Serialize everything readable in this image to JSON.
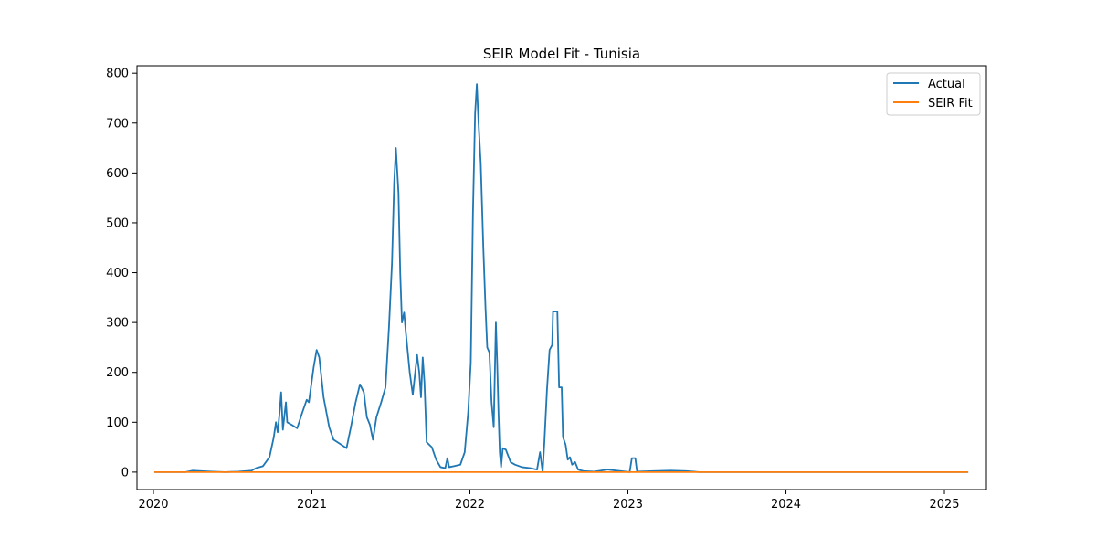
{
  "chart_data": {
    "type": "line",
    "title": "SEIR Model Fit - Tunisia",
    "xlabel": "",
    "ylabel": "",
    "x_ticks": [
      "2020",
      "2021",
      "2022",
      "2023",
      "2024",
      "2025"
    ],
    "y_ticks": [
      0,
      100,
      200,
      300,
      400,
      500,
      600,
      700,
      800
    ],
    "xlim": [
      "2019-11-24",
      "2025-04-08"
    ],
    "ylim": [
      -35,
      815
    ],
    "grid": false,
    "legend_position": "top-right",
    "series": [
      {
        "name": "Actual",
        "color": "#1f77b4",
        "points": [
          [
            "2020-01-03",
            0
          ],
          [
            "2020-03-15",
            0
          ],
          [
            "2020-04-01",
            3
          ],
          [
            "2020-04-20",
            2
          ],
          [
            "2020-05-15",
            1
          ],
          [
            "2020-06-15",
            0
          ],
          [
            "2020-07-15",
            1
          ],
          [
            "2020-08-15",
            3
          ],
          [
            "2020-08-25",
            8
          ],
          [
            "2020-09-10",
            12
          ],
          [
            "2020-09-25",
            30
          ],
          [
            "2020-10-05",
            70
          ],
          [
            "2020-10-10",
            100
          ],
          [
            "2020-10-14",
            80
          ],
          [
            "2020-10-18",
            115
          ],
          [
            "2020-10-22",
            160
          ],
          [
            "2020-10-26",
            85
          ],
          [
            "2020-11-02",
            140
          ],
          [
            "2020-11-05",
            100
          ],
          [
            "2020-11-15",
            95
          ],
          [
            "2020-11-28",
            88
          ],
          [
            "2020-12-10",
            120
          ],
          [
            "2020-12-20",
            145
          ],
          [
            "2020-12-25",
            140
          ],
          [
            "2021-01-05",
            210
          ],
          [
            "2021-01-12",
            245
          ],
          [
            "2021-01-18",
            230
          ],
          [
            "2021-01-28",
            150
          ],
          [
            "2021-02-10",
            90
          ],
          [
            "2021-02-20",
            65
          ],
          [
            "2021-03-10",
            55
          ],
          [
            "2021-03-22",
            48
          ],
          [
            "2021-04-01",
            90
          ],
          [
            "2021-04-12",
            140
          ],
          [
            "2021-04-22",
            176
          ],
          [
            "2021-05-01",
            160
          ],
          [
            "2021-05-08",
            110
          ],
          [
            "2021-05-15",
            95
          ],
          [
            "2021-05-22",
            65
          ],
          [
            "2021-05-30",
            110
          ],
          [
            "2021-06-10",
            140
          ],
          [
            "2021-06-20",
            170
          ],
          [
            "2021-06-28",
            290
          ],
          [
            "2021-07-05",
            420
          ],
          [
            "2021-07-10",
            580
          ],
          [
            "2021-07-14",
            650
          ],
          [
            "2021-07-20",
            560
          ],
          [
            "2021-07-24",
            400
          ],
          [
            "2021-07-28",
            300
          ],
          [
            "2021-08-02",
            320
          ],
          [
            "2021-08-06",
            280
          ],
          [
            "2021-08-15",
            200
          ],
          [
            "2021-08-22",
            155
          ],
          [
            "2021-09-01",
            235
          ],
          [
            "2021-09-06",
            200
          ],
          [
            "2021-09-10",
            150
          ],
          [
            "2021-09-14",
            230
          ],
          [
            "2021-09-18",
            180
          ],
          [
            "2021-09-23",
            60
          ],
          [
            "2021-10-05",
            50
          ],
          [
            "2021-10-15",
            25
          ],
          [
            "2021-10-25",
            10
          ],
          [
            "2021-11-05",
            8
          ],
          [
            "2021-11-10",
            28
          ],
          [
            "2021-11-14",
            10
          ],
          [
            "2021-11-25",
            12
          ],
          [
            "2021-12-10",
            15
          ],
          [
            "2021-12-20",
            40
          ],
          [
            "2021-12-28",
            120
          ],
          [
            "2022-01-03",
            220
          ],
          [
            "2022-01-08",
            520
          ],
          [
            "2022-01-13",
            720
          ],
          [
            "2022-01-17",
            778
          ],
          [
            "2022-01-21",
            700
          ],
          [
            "2022-01-26",
            620
          ],
          [
            "2022-02-01",
            450
          ],
          [
            "2022-02-06",
            330
          ],
          [
            "2022-02-10",
            250
          ],
          [
            "2022-02-15",
            240
          ],
          [
            "2022-02-20",
            140
          ],
          [
            "2022-02-25",
            90
          ],
          [
            "2022-03-02",
            300
          ],
          [
            "2022-03-05",
            220
          ],
          [
            "2022-03-08",
            120
          ],
          [
            "2022-03-11",
            40
          ],
          [
            "2022-03-14",
            10
          ],
          [
            "2022-03-18",
            48
          ],
          [
            "2022-03-25",
            45
          ],
          [
            "2022-04-05",
            20
          ],
          [
            "2022-04-15",
            15
          ],
          [
            "2022-05-01",
            10
          ],
          [
            "2022-05-20",
            8
          ],
          [
            "2022-06-05",
            5
          ],
          [
            "2022-06-12",
            40
          ],
          [
            "2022-06-18",
            0
          ],
          [
            "2022-06-22",
            60
          ],
          [
            "2022-06-28",
            165
          ],
          [
            "2022-07-04",
            245
          ],
          [
            "2022-07-10",
            255
          ],
          [
            "2022-07-12",
            322
          ],
          [
            "2022-07-22",
            322
          ],
          [
            "2022-07-26",
            170
          ],
          [
            "2022-08-01",
            170
          ],
          [
            "2022-08-04",
            70
          ],
          [
            "2022-08-10",
            55
          ],
          [
            "2022-08-15",
            25
          ],
          [
            "2022-08-20",
            30
          ],
          [
            "2022-08-25",
            15
          ],
          [
            "2022-09-01",
            20
          ],
          [
            "2022-09-08",
            5
          ],
          [
            "2022-09-20",
            2
          ],
          [
            "2022-10-15",
            1
          ],
          [
            "2022-11-15",
            5
          ],
          [
            "2022-12-15",
            2
          ],
          [
            "2023-01-05",
            0
          ],
          [
            "2023-01-10",
            28
          ],
          [
            "2023-01-18",
            28
          ],
          [
            "2023-01-22",
            1
          ],
          [
            "2023-03-01",
            2
          ],
          [
            "2023-04-10",
            3
          ],
          [
            "2023-05-15",
            2
          ],
          [
            "2023-06-15",
            0
          ],
          [
            "2025-02-25",
            0
          ]
        ]
      },
      {
        "name": "SEIR Fit",
        "color": "#ff7f0e",
        "points": [
          [
            "2020-01-03",
            0
          ],
          [
            "2025-02-25",
            0
          ]
        ]
      }
    ]
  }
}
